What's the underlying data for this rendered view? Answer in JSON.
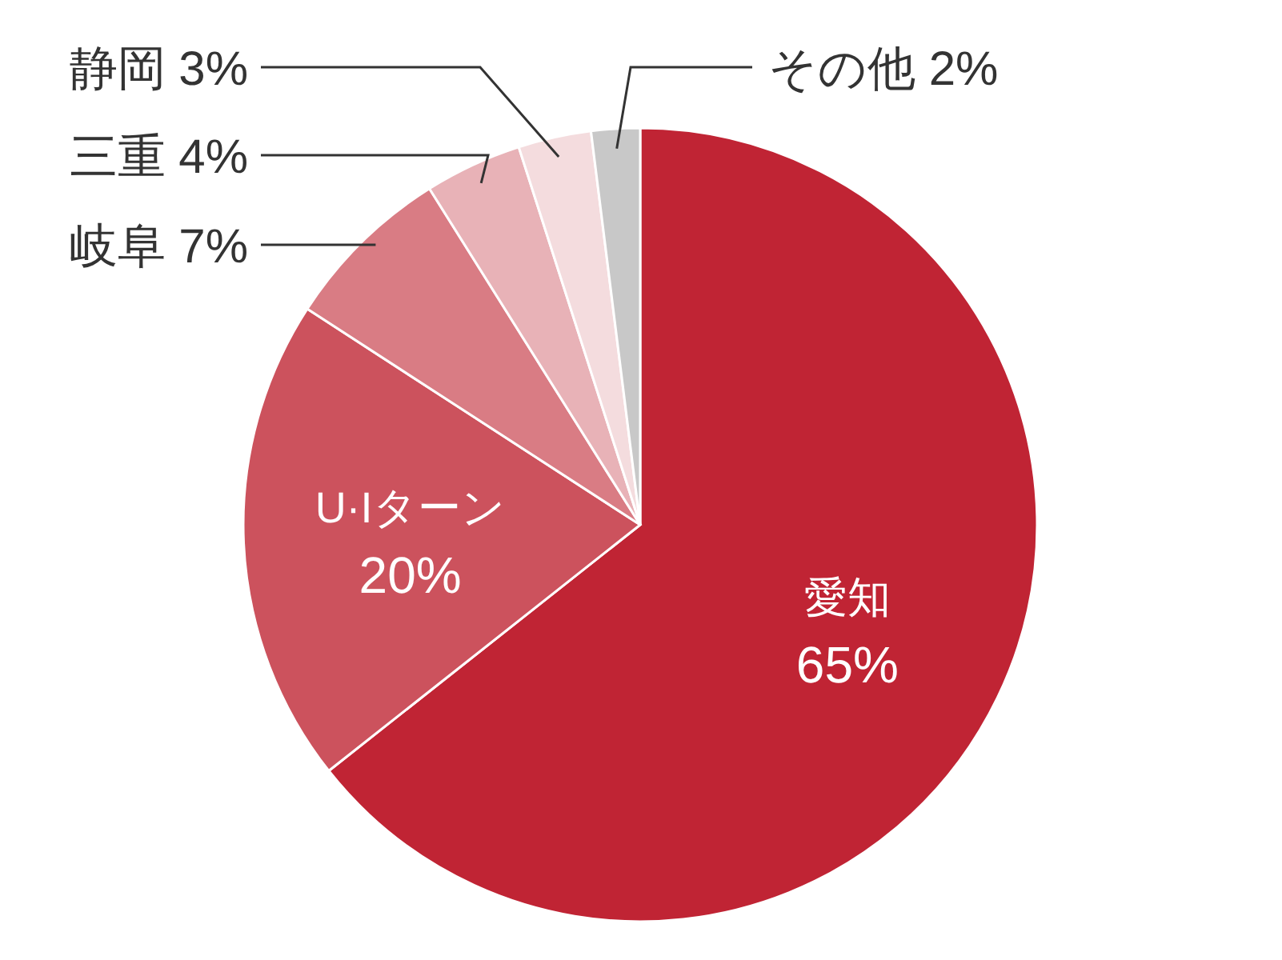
{
  "chart_data": {
    "type": "pie",
    "categories": [
      "愛知",
      "U·Iターン",
      "岐阜",
      "三重",
      "静岡",
      "その他"
    ],
    "values": [
      65,
      20,
      7,
      4,
      3,
      2
    ],
    "value_labels": [
      "65%",
      "20%",
      "7%",
      "4%",
      "3%",
      "2%"
    ],
    "colors": [
      "#c02434",
      "#cc525d",
      "#d97c84",
      "#e8b2b7",
      "#f4dcde",
      "#c8c8c8"
    ],
    "legend": false
  }
}
